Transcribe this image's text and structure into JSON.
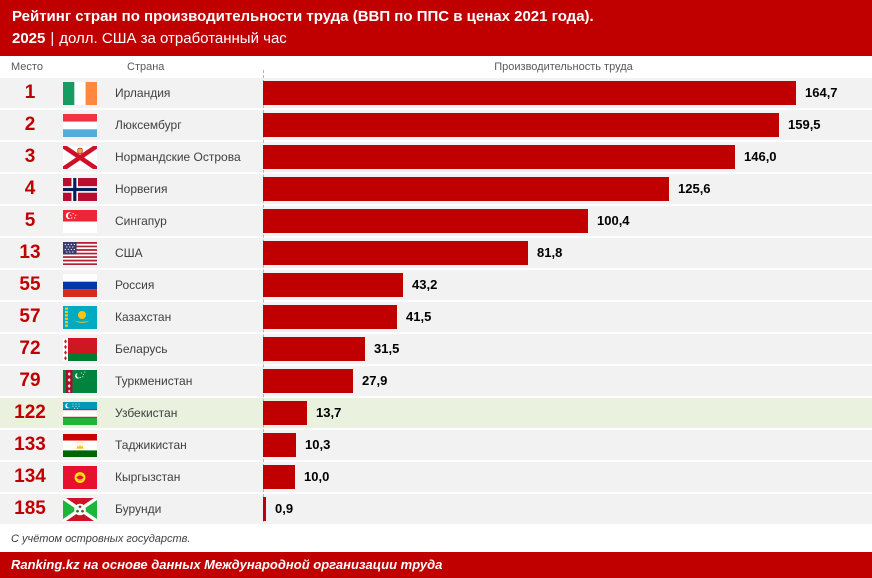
{
  "header": {
    "title": "Рейтинг стран по производительности труда (ВВП по ППС в ценах 2021 года).",
    "year": "2025",
    "separator": "|",
    "subtitle": "долл. США за отработанный час"
  },
  "columns": {
    "rank": "Место",
    "country": "Страна",
    "value": "Производительность труда"
  },
  "chart_data": {
    "type": "bar",
    "orientation": "horizontal",
    "title": "Рейтинг стран по производительности труда (ВВП по ППС в ценах 2021 года). 2025",
    "unit": "долл. США за отработанный час",
    "xlim": [
      0,
      170
    ],
    "grid": false,
    "bar_color": "#C00000",
    "highlight_index": 10,
    "ranks": [
      "1",
      "2",
      "3",
      "4",
      "5",
      "13",
      "55",
      "57",
      "72",
      "79",
      "122",
      "133",
      "134",
      "185"
    ],
    "categories": [
      "Ирландия",
      "Люксембург",
      "Нормандские Острова",
      "Норвегия",
      "Сингапур",
      "США",
      "Россия",
      "Казахстан",
      "Беларусь",
      "Туркменистан",
      "Узбекистан",
      "Таджикистан",
      "Кыргызстан",
      "Бурунди"
    ],
    "values": [
      164.7,
      159.5,
      146.0,
      125.6,
      100.4,
      81.8,
      43.2,
      41.5,
      31.5,
      27.9,
      13.7,
      10.3,
      10.0,
      0.9
    ],
    "labels": [
      "164,7",
      "159,5",
      "146,0",
      "125,6",
      "100,4",
      "81,8",
      "43,2",
      "41,5",
      "31,5",
      "27,9",
      "13,7",
      "10,3",
      "10,0",
      "0,9"
    ],
    "flags": [
      "ireland",
      "luxembourg",
      "jersey",
      "norway",
      "singapore",
      "usa",
      "russia",
      "kazakhstan",
      "belarus",
      "turkmenistan",
      "uzbekistan",
      "tajikistan",
      "kyrgyzstan",
      "burundi"
    ]
  },
  "footnote": "С учётом островных государств.",
  "source": "Ranking.kz на основе данных Международной организации труда",
  "colors": {
    "accent": "#C00000",
    "row_bg": "#F2F2F2",
    "highlight_bg": "#EAF1DE",
    "muted_text": "#595959"
  }
}
